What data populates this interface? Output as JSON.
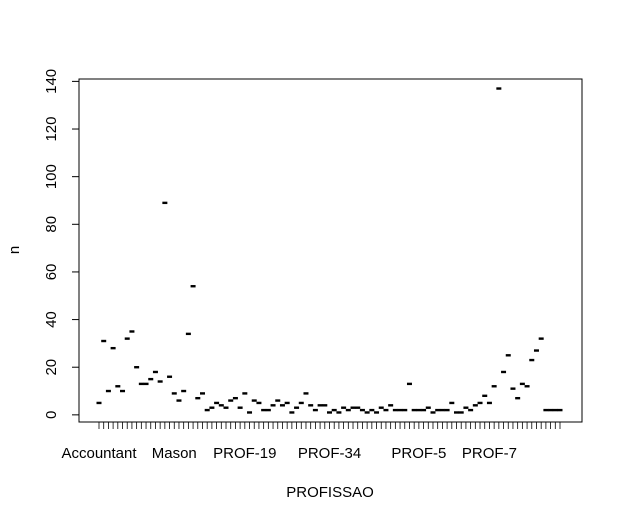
{
  "chart_data": {
    "type": "scatter",
    "xlabel": "PROFISSAO",
    "ylabel": "n",
    "ylim": [
      -3,
      141
    ],
    "y_ticks": [
      0,
      20,
      40,
      60,
      80,
      100,
      120,
      140
    ],
    "x_tick_labels": [
      {
        "label": "Accountant",
        "index": 1
      },
      {
        "label": "Mason",
        "index": 17
      },
      {
        "label": "PROF-19",
        "index": 32
      },
      {
        "label": "PROF-34",
        "index": 50
      },
      {
        "label": "PROF-5",
        "index": 69
      },
      {
        "label": "PROF-7",
        "index": 84
      }
    ],
    "n_categories": 99,
    "values": [
      5,
      31,
      10,
      28,
      12,
      10,
      32,
      35,
      20,
      13,
      13,
      15,
      18,
      14,
      89,
      16,
      9,
      6,
      10,
      34,
      54,
      7,
      9,
      2,
      3,
      5,
      4,
      3,
      6,
      7,
      3,
      9,
      1,
      6,
      5,
      2,
      2,
      4,
      6,
      4,
      5,
      1,
      3,
      5,
      9,
      4,
      2,
      4,
      4,
      1,
      2,
      1,
      3,
      2,
      3,
      3,
      2,
      1,
      2,
      1,
      3,
      2,
      4,
      2,
      2,
      2,
      13,
      2,
      2,
      2,
      3,
      1,
      2,
      2,
      2,
      5,
      1,
      1,
      3,
      2,
      4,
      5,
      8,
      5,
      12,
      137,
      18,
      25,
      11,
      7,
      13,
      12,
      23,
      27,
      32,
      2,
      2,
      2,
      2
    ]
  }
}
